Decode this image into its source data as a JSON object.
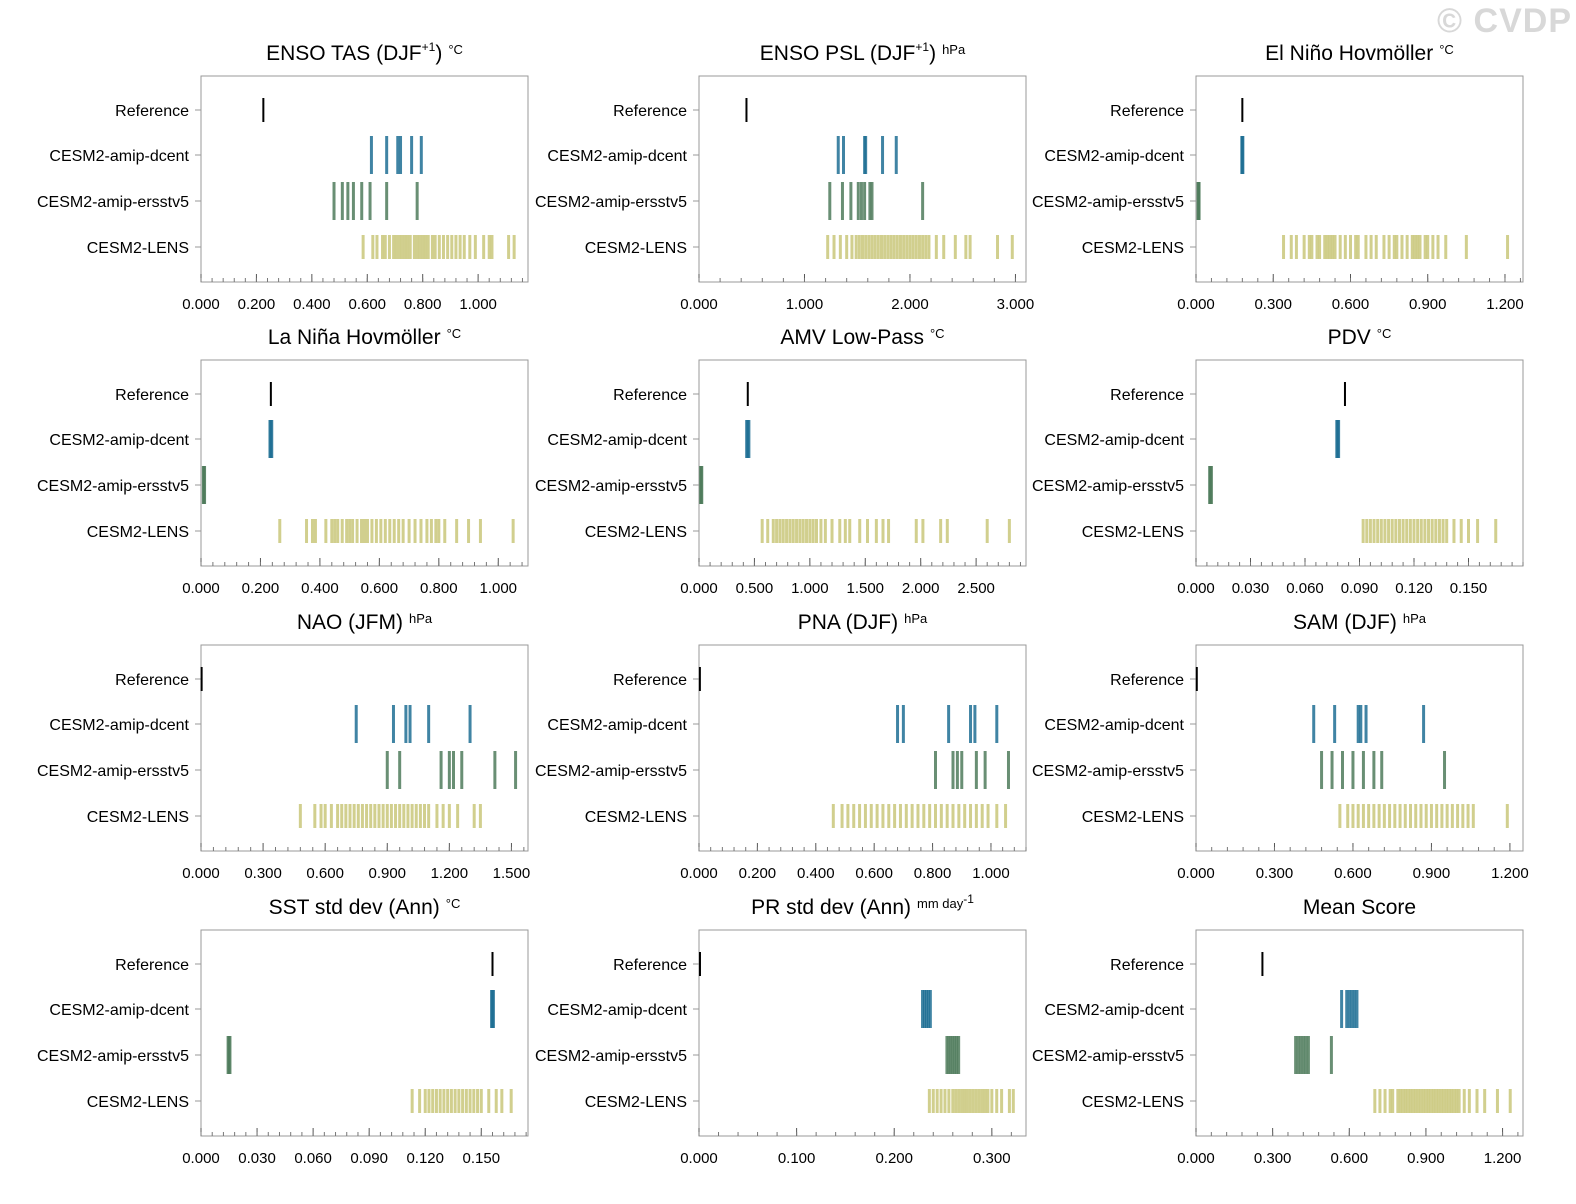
{
  "watermark": "© CVDP",
  "colors": {
    "reference": "#000000",
    "amip_dcent": "#1f6f94",
    "amip_ersstv5": "#4f7b5c",
    "lens": "#c9c77a",
    "frame": "#999999"
  },
  "row_labels": [
    "Reference",
    "CESM2-amip-dcent",
    "CESM2-amip-ersstv5",
    "CESM2-LENS"
  ],
  "chart_data": [
    {
      "type": "strip",
      "title": "ENSO TAS (DJF",
      "title_sup": "+1",
      "title_close": ")",
      "unit": "°C",
      "xlim": [
        0,
        1.18
      ],
      "ticks": [
        "0.000",
        "0.200",
        "0.400",
        "0.600",
        "0.800",
        "1.000"
      ],
      "tick_values": [
        0,
        0.2,
        0.4,
        0.6,
        0.8,
        1.0
      ],
      "reference": [
        0.225
      ],
      "amip_dcent": [
        0.615,
        0.67,
        0.71,
        0.72,
        0.76,
        0.795
      ],
      "amip_ersstv5": [
        0.48,
        0.51,
        0.53,
        0.55,
        0.58,
        0.61,
        0.67,
        0.78
      ],
      "lens": [
        0.585,
        0.62,
        0.635,
        0.655,
        0.665,
        0.68,
        0.695,
        0.705,
        0.715,
        0.725,
        0.735,
        0.745,
        0.755,
        0.77,
        0.78,
        0.79,
        0.8,
        0.81,
        0.82,
        0.835,
        0.845,
        0.86,
        0.875,
        0.89,
        0.905,
        0.92,
        0.935,
        0.95,
        0.97,
        0.99,
        1.02,
        1.04,
        1.05,
        1.11,
        1.13
      ]
    },
    {
      "type": "strip",
      "title": "ENSO PSL (DJF",
      "title_sup": "+1",
      "title_close": ")",
      "unit": "hPa",
      "xlim": [
        0,
        3.1
      ],
      "ticks": [
        "0.000",
        "1.000",
        "2.000",
        "3.000"
      ],
      "tick_values": [
        0,
        1,
        2,
        3
      ],
      "reference": [
        0.45
      ],
      "amip_dcent": [
        1.32,
        1.37,
        1.57,
        1.58,
        1.74,
        1.87
      ],
      "amip_ersstv5": [
        1.24,
        1.36,
        1.44,
        1.51,
        1.54,
        1.57,
        1.62,
        1.64,
        2.12
      ],
      "lens": [
        1.22,
        1.28,
        1.34,
        1.4,
        1.45,
        1.49,
        1.52,
        1.55,
        1.58,
        1.61,
        1.64,
        1.67,
        1.7,
        1.73,
        1.76,
        1.79,
        1.82,
        1.85,
        1.88,
        1.91,
        1.94,
        1.97,
        2.0,
        2.03,
        2.06,
        2.09,
        2.12,
        2.15,
        2.18,
        2.25,
        2.32,
        2.43,
        2.53,
        2.57,
        2.83,
        2.97
      ]
    },
    {
      "type": "strip",
      "title": "El Niño Hovmöller",
      "title_sup": "",
      "title_close": "",
      "unit": "°C",
      "xlim": [
        0,
        1.27
      ],
      "ticks": [
        "0.000",
        "0.300",
        "0.600",
        "0.900",
        "1.200"
      ],
      "tick_values": [
        0,
        0.3,
        0.6,
        0.9,
        1.2
      ],
      "reference": [
        0.18
      ],
      "amip_dcent": [
        0.178,
        0.18,
        0.182
      ],
      "amip_ersstv5": [
        0.008,
        0.01,
        0.012
      ],
      "lens": [
        0.34,
        0.37,
        0.39,
        0.42,
        0.44,
        0.45,
        0.47,
        0.48,
        0.5,
        0.51,
        0.52,
        0.53,
        0.54,
        0.56,
        0.58,
        0.6,
        0.62,
        0.63,
        0.66,
        0.68,
        0.7,
        0.73,
        0.75,
        0.77,
        0.78,
        0.8,
        0.82,
        0.84,
        0.85,
        0.86,
        0.87,
        0.89,
        0.9,
        0.92,
        0.94,
        0.97,
        1.05,
        1.21
      ]
    },
    {
      "type": "strip",
      "title": "La Niña Hovmöller",
      "title_sup": "",
      "title_close": "",
      "unit": "°C",
      "xlim": [
        0,
        1.1
      ],
      "ticks": [
        "0.000",
        "0.200",
        "0.400",
        "0.600",
        "0.800",
        "1.000"
      ],
      "tick_values": [
        0,
        0.2,
        0.4,
        0.6,
        0.8,
        1.0
      ],
      "reference": [
        0.235
      ],
      "amip_dcent": [
        0.232,
        0.235,
        0.238
      ],
      "amip_ersstv5": [
        0.008,
        0.01,
        0.012
      ],
      "lens": [
        0.265,
        0.355,
        0.375,
        0.385,
        0.42,
        0.44,
        0.45,
        0.46,
        0.475,
        0.49,
        0.5,
        0.51,
        0.525,
        0.54,
        0.55,
        0.56,
        0.575,
        0.59,
        0.605,
        0.62,
        0.635,
        0.65,
        0.665,
        0.68,
        0.7,
        0.72,
        0.74,
        0.76,
        0.775,
        0.79,
        0.8,
        0.82,
        0.86,
        0.9,
        0.94,
        1.05
      ]
    },
    {
      "type": "strip",
      "title": "AMV Low-Pass",
      "title_sup": "",
      "title_close": "",
      "unit": "°C",
      "xlim": [
        0,
        2.95
      ],
      "ticks": [
        "0.000",
        "0.500",
        "1.000",
        "1.500",
        "2.000",
        "2.500"
      ],
      "tick_values": [
        0,
        0.5,
        1.0,
        1.5,
        2.0,
        2.5
      ],
      "reference": [
        0.44
      ],
      "amip_dcent": [
        0.43,
        0.44,
        0.45
      ],
      "amip_ersstv5": [
        0.015,
        0.02,
        0.025
      ],
      "lens": [
        0.57,
        0.62,
        0.67,
        0.7,
        0.73,
        0.76,
        0.79,
        0.82,
        0.85,
        0.88,
        0.91,
        0.94,
        0.97,
        1.0,
        1.03,
        1.06,
        1.1,
        1.14,
        1.2,
        1.27,
        1.32,
        1.36,
        1.45,
        1.52,
        1.6,
        1.66,
        1.71,
        1.96,
        2.02,
        2.18,
        2.24,
        2.6,
        2.8
      ]
    },
    {
      "type": "strip",
      "title": "PDV",
      "title_sup": "",
      "title_close": "",
      "unit": "°C",
      "xlim": [
        0,
        0.18
      ],
      "ticks": [
        "0.000",
        "0.030",
        "0.060",
        "0.090",
        "0.120",
        "0.150"
      ],
      "tick_values": [
        0,
        0.03,
        0.06,
        0.09,
        0.12,
        0.15
      ],
      "reference": [
        0.082
      ],
      "amip_dcent": [
        0.0775,
        0.078,
        0.0785
      ],
      "amip_ersstv5": [
        0.0075,
        0.008,
        0.0085
      ],
      "lens": [
        0.092,
        0.094,
        0.096,
        0.098,
        0.1,
        0.102,
        0.104,
        0.106,
        0.108,
        0.11,
        0.112,
        0.114,
        0.116,
        0.118,
        0.12,
        0.122,
        0.124,
        0.126,
        0.128,
        0.13,
        0.132,
        0.134,
        0.136,
        0.138,
        0.142,
        0.146,
        0.15,
        0.155,
        0.165
      ]
    },
    {
      "type": "strip",
      "title": "NAO (JFM)",
      "title_sup": "",
      "title_close": "",
      "unit": "hPa",
      "xlim": [
        0,
        1.58
      ],
      "ticks": [
        "0.000",
        "0.300",
        "0.600",
        "0.900",
        "1.200",
        "1.500"
      ],
      "tick_values": [
        0,
        0.3,
        0.6,
        0.9,
        1.2,
        1.5
      ],
      "reference": [
        0.003
      ],
      "amip_dcent": [
        0.75,
        0.93,
        0.99,
        1.01,
        1.1,
        1.3
      ],
      "amip_ersstv5": [
        0.9,
        0.96,
        1.16,
        1.2,
        1.22,
        1.26,
        1.42,
        1.52
      ],
      "lens": [
        0.48,
        0.55,
        0.58,
        0.6,
        0.63,
        0.66,
        0.68,
        0.7,
        0.72,
        0.74,
        0.76,
        0.78,
        0.8,
        0.82,
        0.84,
        0.86,
        0.88,
        0.9,
        0.92,
        0.94,
        0.96,
        0.98,
        1.0,
        1.02,
        1.04,
        1.06,
        1.08,
        1.1,
        1.14,
        1.17,
        1.2,
        1.24,
        1.32,
        1.35
      ]
    },
    {
      "type": "strip",
      "title": "PNA (DJF)",
      "title_sup": "",
      "title_close": "",
      "unit": "hPa",
      "xlim": [
        0,
        1.12
      ],
      "ticks": [
        "0.000",
        "0.200",
        "0.400",
        "0.600",
        "0.800",
        "1.000"
      ],
      "tick_values": [
        0,
        0.2,
        0.4,
        0.6,
        0.8,
        1.0
      ],
      "reference": [
        0.003
      ],
      "amip_dcent": [
        0.68,
        0.7,
        0.855,
        0.93,
        0.945,
        1.02
      ],
      "amip_ersstv5": [
        0.81,
        0.87,
        0.885,
        0.9,
        0.95,
        0.98,
        1.06
      ],
      "lens": [
        0.46,
        0.49,
        0.51,
        0.53,
        0.55,
        0.57,
        0.59,
        0.61,
        0.63,
        0.65,
        0.67,
        0.69,
        0.71,
        0.73,
        0.75,
        0.77,
        0.79,
        0.81,
        0.83,
        0.85,
        0.87,
        0.89,
        0.91,
        0.93,
        0.95,
        0.97,
        0.99,
        1.02,
        1.05
      ]
    },
    {
      "type": "strip",
      "title": "SAM (DJF)",
      "title_sup": "",
      "title_close": "",
      "unit": "hPa",
      "xlim": [
        0,
        1.25
      ],
      "ticks": [
        "0.000",
        "0.300",
        "0.600",
        "0.900",
        "1.200"
      ],
      "tick_values": [
        0,
        0.3,
        0.6,
        0.9,
        1.2
      ],
      "reference": [
        0.003
      ],
      "amip_dcent": [
        0.45,
        0.53,
        0.62,
        0.63,
        0.65,
        0.87
      ],
      "amip_ersstv5": [
        0.48,
        0.52,
        0.56,
        0.6,
        0.64,
        0.68,
        0.71,
        0.95
      ],
      "lens": [
        0.55,
        0.58,
        0.6,
        0.62,
        0.64,
        0.66,
        0.68,
        0.7,
        0.72,
        0.74,
        0.76,
        0.78,
        0.8,
        0.82,
        0.84,
        0.86,
        0.88,
        0.9,
        0.92,
        0.94,
        0.96,
        0.98,
        1.0,
        1.02,
        1.04,
        1.06,
        1.19
      ]
    },
    {
      "type": "strip",
      "title": "SST std dev (Ann)",
      "title_sup": "",
      "title_close": "",
      "unit": "°C",
      "xlim": [
        0,
        0.175
      ],
      "ticks": [
        "0.000",
        "0.030",
        "0.060",
        "0.090",
        "0.120",
        "0.150"
      ],
      "tick_values": [
        0,
        0.03,
        0.06,
        0.09,
        0.12,
        0.15
      ],
      "reference": [
        0.156
      ],
      "amip_dcent": [
        0.1555,
        0.156,
        0.1565
      ],
      "amip_ersstv5": [
        0.0145,
        0.015,
        0.0155
      ],
      "lens": [
        0.113,
        0.117,
        0.12,
        0.122,
        0.124,
        0.126,
        0.128,
        0.13,
        0.132,
        0.134,
        0.136,
        0.138,
        0.14,
        0.142,
        0.144,
        0.146,
        0.148,
        0.15,
        0.154,
        0.158,
        0.161,
        0.166
      ]
    },
    {
      "type": "strip",
      "title": "PR std dev (Ann)",
      "title_sup": "",
      "title_close": "",
      "unit": "mm day",
      "unit_sup": "-1",
      "xlim": [
        0,
        0.335
      ],
      "ticks": [
        "0.000",
        "0.100",
        "0.200",
        "0.300"
      ],
      "tick_values": [
        0,
        0.1,
        0.2,
        0.3
      ],
      "reference": [
        0.001
      ],
      "amip_dcent": [
        0.229,
        0.231,
        0.233,
        0.235,
        0.237
      ],
      "amip_ersstv5": [
        0.254,
        0.256,
        0.258,
        0.26,
        0.262,
        0.264,
        0.266
      ],
      "lens": [
        0.236,
        0.24,
        0.244,
        0.248,
        0.252,
        0.256,
        0.26,
        0.263,
        0.266,
        0.269,
        0.272,
        0.275,
        0.278,
        0.281,
        0.284,
        0.287,
        0.29,
        0.293,
        0.296,
        0.3,
        0.305,
        0.31,
        0.318,
        0.322
      ]
    },
    {
      "type": "strip",
      "title": "Mean Score",
      "title_sup": "",
      "title_close": "",
      "unit": "",
      "xlim": [
        0,
        1.28
      ],
      "ticks": [
        "0.000",
        "0.300",
        "0.600",
        "0.900",
        "1.200"
      ],
      "tick_values": [
        0,
        0.3,
        0.6,
        0.9,
        1.2
      ],
      "reference": [
        0.26
      ],
      "amip_dcent": [
        0.57,
        0.59,
        0.6,
        0.61,
        0.62,
        0.63
      ],
      "amip_ersstv5": [
        0.39,
        0.4,
        0.41,
        0.42,
        0.43,
        0.44,
        0.53
      ],
      "lens": [
        0.7,
        0.72,
        0.74,
        0.76,
        0.77,
        0.79,
        0.8,
        0.81,
        0.82,
        0.83,
        0.84,
        0.85,
        0.86,
        0.87,
        0.88,
        0.89,
        0.9,
        0.91,
        0.92,
        0.93,
        0.94,
        0.95,
        0.96,
        0.97,
        0.98,
        0.99,
        1.0,
        1.01,
        1.02,
        1.03,
        1.05,
        1.07,
        1.1,
        1.13,
        1.18,
        1.23
      ]
    }
  ]
}
